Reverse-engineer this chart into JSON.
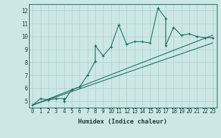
{
  "xlabel": "Humidex (Indice chaleur)",
  "ylabel": "",
  "bg_color": "#cce8e4",
  "line_color": "#1a6b5e",
  "grid_color": "#aacfca",
  "xlim": [
    -0.5,
    23.5
  ],
  "ylim": [
    4.5,
    12.5
  ],
  "xticks": [
    0,
    1,
    2,
    3,
    4,
    5,
    6,
    7,
    8,
    9,
    10,
    11,
    12,
    13,
    14,
    15,
    16,
    17,
    18,
    19,
    20,
    21,
    22,
    23
  ],
  "yticks": [
    5,
    6,
    7,
    8,
    9,
    10,
    11,
    12
  ],
  "main_x": [
    0,
    1,
    2,
    3,
    4,
    4,
    5,
    6,
    7,
    8,
    8,
    9,
    10,
    11,
    12,
    13,
    14,
    15,
    16,
    17,
    17,
    18,
    19,
    20,
    21,
    22,
    23
  ],
  "main_y": [
    4.7,
    5.2,
    5.1,
    5.2,
    5.2,
    5.0,
    5.9,
    6.1,
    7.0,
    8.1,
    9.3,
    8.5,
    9.2,
    10.9,
    9.4,
    9.6,
    9.6,
    9.5,
    12.2,
    11.4,
    9.3,
    10.7,
    10.1,
    10.2,
    10.0,
    9.9,
    9.9
  ],
  "line2_x": [
    0,
    23
  ],
  "line2_y": [
    4.7,
    10.1
  ],
  "line3_x": [
    0,
    23
  ],
  "line3_y": [
    4.7,
    9.5
  ]
}
